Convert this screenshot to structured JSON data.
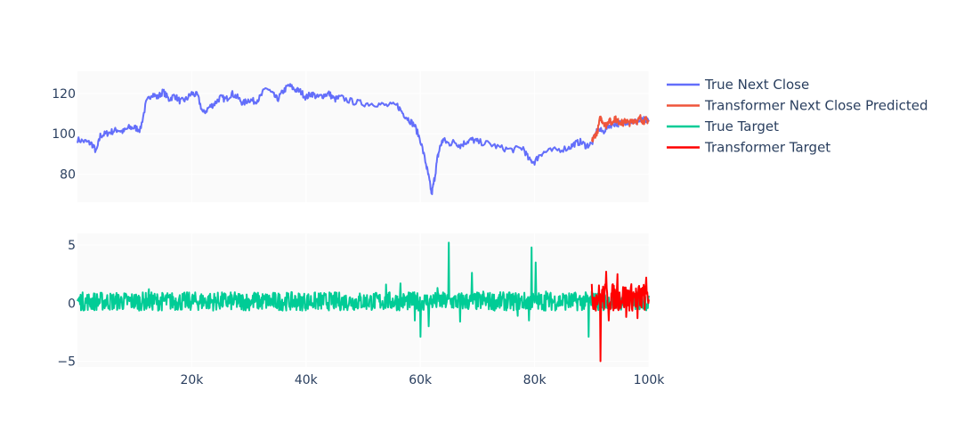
{
  "chart_data": {
    "type": "line",
    "x_ticks": [
      {
        "value": 20000,
        "label": "20k"
      },
      {
        "value": 40000,
        "label": "40k"
      },
      {
        "value": 60000,
        "label": "60k"
      },
      {
        "value": 80000,
        "label": "80k"
      },
      {
        "value": 100000,
        "label": "100k"
      }
    ],
    "x_range": [
      0,
      100000
    ],
    "legend_position": "right",
    "panels": [
      {
        "name": "top",
        "y_range": [
          66,
          131
        ],
        "y_ticks": [
          {
            "value": 80,
            "label": "80"
          },
          {
            "value": 100,
            "label": "100"
          },
          {
            "value": 120,
            "label": "120"
          }
        ],
        "series": [
          {
            "name": "True Next Close",
            "color": "#636efa",
            "x": [
              0,
              1500,
              2500,
              3300,
              4000,
              5000,
              6000,
              7000,
              8000,
              9000,
              10000,
              11000,
              12000,
              13000,
              14000,
              15000,
              16000,
              17000,
              18000,
              19000,
              20000,
              21000,
              22000,
              23000,
              24000,
              25000,
              26000,
              27000,
              28000,
              29000,
              30000,
              31000,
              32000,
              33000,
              34000,
              35000,
              36000,
              37000,
              38000,
              39000,
              40000,
              41000,
              42000,
              43000,
              44000,
              45000,
              46000,
              48000,
              50000,
              52000,
              54000,
              56000,
              57000,
              58000,
              59000,
              60000,
              61000,
              61500,
              62000,
              62500,
              63000,
              63500,
              64000,
              65000,
              66000,
              67000,
              68000,
              69000,
              70000,
              72000,
              74000,
              76000,
              78000,
              79000,
              80000,
              81000,
              82000,
              84000,
              86000,
              87000,
              88000,
              89000,
              90000,
              91000,
              92000,
              93000,
              94000,
              95000,
              96000,
              97000,
              98000,
              99000,
              100000
            ],
            "y": [
              97,
              96,
              95,
              91,
              99,
              100,
              101,
              102,
              101,
              103,
              103,
              102,
              115,
              120,
              118,
              121,
              117,
              119,
              116,
              117,
              120,
              119,
              110,
              113,
              115,
              118,
              117,
              120,
              118,
              115,
              117,
              116,
              118,
              123,
              120,
              117,
              121,
              124,
              122,
              121,
              118,
              120,
              118,
              119,
              120,
              117,
              118,
              116,
              115,
              115,
              114,
              114,
              110,
              107,
              104,
              97,
              85,
              78,
              70,
              78,
              88,
              94,
              97,
              95,
              96,
              94,
              96,
              97,
              96,
              95,
              93,
              92,
              93,
              87,
              86,
              90,
              91,
              92,
              93,
              95,
              96,
              94,
              95,
              102,
              101,
              104,
              105,
              105,
              106,
              106,
              106,
              107,
              106
            ]
          },
          {
            "name": "Transformer Next Close Predicted",
            "color": "#ef553b",
            "x": [
              90000,
              90500,
              91000,
              91500,
              92000,
              92500,
              93000,
              93500,
              94000,
              94500,
              95000,
              95500,
              96000,
              96500,
              97000,
              97500,
              98000,
              98500,
              99000,
              99500,
              100000
            ],
            "y": [
              96,
              99,
              101,
              108,
              106,
              104,
              107,
              105,
              108,
              106,
              106,
              105,
              107,
              105,
              106,
              107,
              106,
              108,
              106,
              107,
              106
            ]
          }
        ]
      },
      {
        "name": "bottom",
        "y_range": [
          -5.5,
          6
        ],
        "y_ticks": [
          {
            "value": -5,
            "label": "−5"
          },
          {
            "value": 0,
            "label": "0"
          },
          {
            "value": 5,
            "label": "5"
          }
        ],
        "series": [
          {
            "name": "True Target",
            "color": "#00cc96",
            "amplitude": 0.8,
            "spikes": [
              {
                "x": 12500,
                "y": 1.2
              },
              {
                "x": 31000,
                "y": 0.9
              },
              {
                "x": 54000,
                "y": 1.6
              },
              {
                "x": 56500,
                "y": 1.7
              },
              {
                "x": 59000,
                "y": -1.5
              },
              {
                "x": 60000,
                "y": -2.9
              },
              {
                "x": 61500,
                "y": -2.0
              },
              {
                "x": 63000,
                "y": 1.3
              },
              {
                "x": 65000,
                "y": 5.2
              },
              {
                "x": 67000,
                "y": -1.6
              },
              {
                "x": 69000,
                "y": 2.6
              },
              {
                "x": 71000,
                "y": 1.0
              },
              {
                "x": 77000,
                "y": -1.1
              },
              {
                "x": 79000,
                "y": -1.5
              },
              {
                "x": 79500,
                "y": 4.8
              },
              {
                "x": 80200,
                "y": 3.5
              },
              {
                "x": 82000,
                "y": 1.0
              },
              {
                "x": 85000,
                "y": 0.8
              },
              {
                "x": 89500,
                "y": -2.9
              },
              {
                "x": 90000,
                "y": 1.0
              }
            ]
          },
          {
            "name": "Transformer Target",
            "color": "#ff0000",
            "amplitude": 1.2,
            "x_start": 90000,
            "spikes": [
              {
                "x": 91500,
                "y": -5.0
              },
              {
                "x": 92500,
                "y": 2.7
              },
              {
                "x": 93000,
                "y": -1.5
              },
              {
                "x": 94500,
                "y": 2.5
              },
              {
                "x": 96000,
                "y": -1.2
              },
              {
                "x": 98000,
                "y": -1.3
              },
              {
                "x": 99500,
                "y": 2.2
              }
            ]
          }
        ]
      }
    ],
    "legend": [
      {
        "name": "True Next Close",
        "color": "#636efa"
      },
      {
        "name": "Transformer Next Close Predicted",
        "color": "#ef553b"
      },
      {
        "name": "True Target",
        "color": "#00cc96"
      },
      {
        "name": "Transformer Target",
        "color": "#ff0000"
      }
    ]
  }
}
